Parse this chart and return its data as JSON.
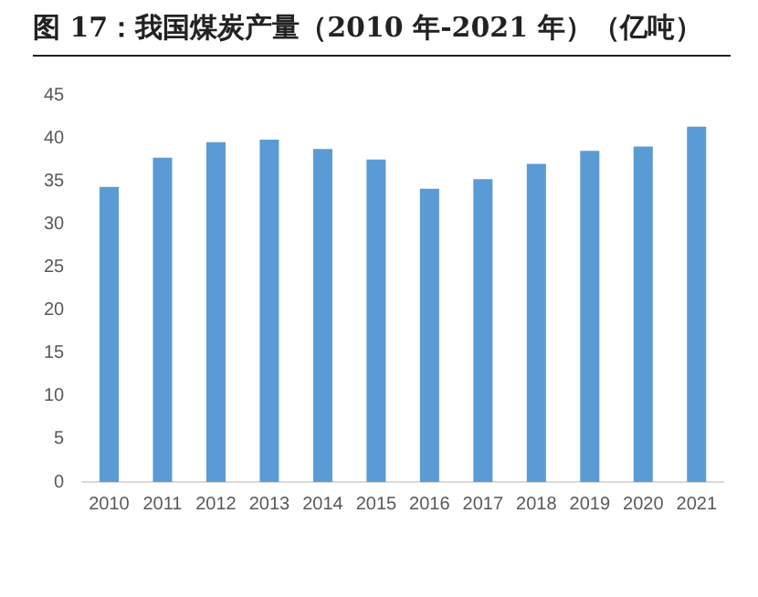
{
  "chart_data": {
    "type": "bar",
    "title": "图 17：我国煤炭产量（2010 年-2021 年）（亿吨）",
    "categories": [
      "2010",
      "2011",
      "2012",
      "2013",
      "2014",
      "2015",
      "2016",
      "2017",
      "2018",
      "2019",
      "2020",
      "2021"
    ],
    "values": [
      34.3,
      37.7,
      39.5,
      39.8,
      38.7,
      37.5,
      34.1,
      35.2,
      37.0,
      38.5,
      39.0,
      41.3
    ],
    "color": "#5b9bd5",
    "ylim": [
      0,
      45
    ],
    "yticks": [
      0,
      5,
      10,
      15,
      20,
      25,
      30,
      35,
      40,
      45
    ],
    "grid": false
  }
}
